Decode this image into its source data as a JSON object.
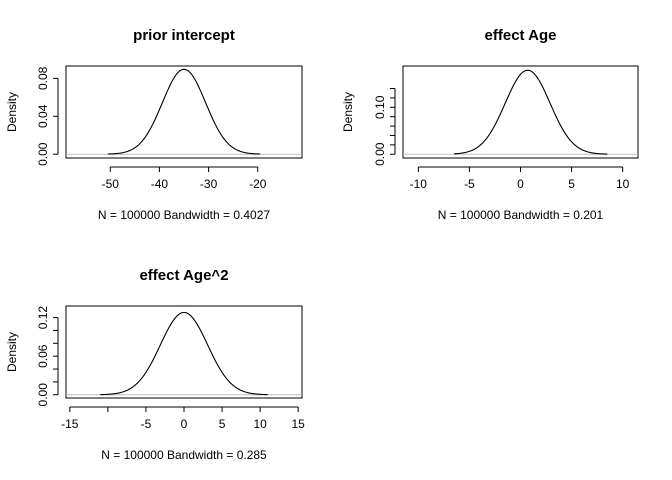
{
  "chart_data": [
    {
      "type": "line",
      "title": "prior intercept",
      "xlabel": "N = 100000   Bandwidth = 0.4027",
      "ylabel": "Density",
      "xlim": [
        -59,
        -11
      ],
      "ylim": [
        -0.004,
        0.093
      ],
      "xticks": [
        "-50",
        "-40",
        "-30",
        "-20"
      ],
      "xtick_values": [
        -50,
        -40,
        -30,
        -20
      ],
      "yticks": [
        "0.00",
        "0.04",
        "0.08"
      ],
      "ytick_values": [
        0.0,
        0.04,
        0.08
      ],
      "density_curve": {
        "center": -35.0,
        "sd": 4.4,
        "peak": 0.0895,
        "xmin": -50.5,
        "xmax": -19.5
      },
      "baseline": true
    },
    {
      "type": "line",
      "title": "effect Age",
      "xlabel": "N = 100000   Bandwidth = 0.201",
      "ylabel": "Density",
      "xlim": [
        -11.5,
        11.5
      ],
      "ylim": [
        -0.008,
        0.188
      ],
      "xticks": [
        "-10",
        "-5",
        "0",
        "5",
        "10"
      ],
      "xtick_values": [
        -10,
        -5,
        0,
        5,
        10
      ],
      "yticks": [
        "0.00",
        "0.10"
      ],
      "ytick_values": [
        0.0,
        0.1
      ],
      "ytick_minor_values": [
        0.02,
        0.04,
        0.06,
        0.08,
        0.12,
        0.14
      ],
      "density_curve": {
        "center": 0.7,
        "sd": 2.2,
        "peak": 0.179,
        "xmin": -6.5,
        "xmax": 8.5
      },
      "baseline": true
    },
    {
      "type": "line",
      "title": "effect Age^2",
      "xlabel": "N = 100000   Bandwidth = 0.285",
      "ylabel": "Density",
      "xlim": [
        -15.5,
        15.5
      ],
      "ylim": [
        -0.005,
        0.138
      ],
      "xticks": [
        "-15",
        "-5",
        "0",
        "5",
        "10",
        "15"
      ],
      "xtick_values": [
        -15,
        -5,
        0,
        5,
        10,
        15
      ],
      "xtick_minor_values": [
        -10
      ],
      "yticks": [
        "0.00",
        "0.06",
        "0.12"
      ],
      "ytick_values": [
        0.0,
        0.06,
        0.12
      ],
      "ytick_minor_values": [
        0.02,
        0.04,
        0.08,
        0.1
      ],
      "density_curve": {
        "center": 0.0,
        "sd": 3.1,
        "peak": 0.128,
        "xmin": -11.0,
        "xmax": 11.0
      },
      "baseline": true
    }
  ]
}
